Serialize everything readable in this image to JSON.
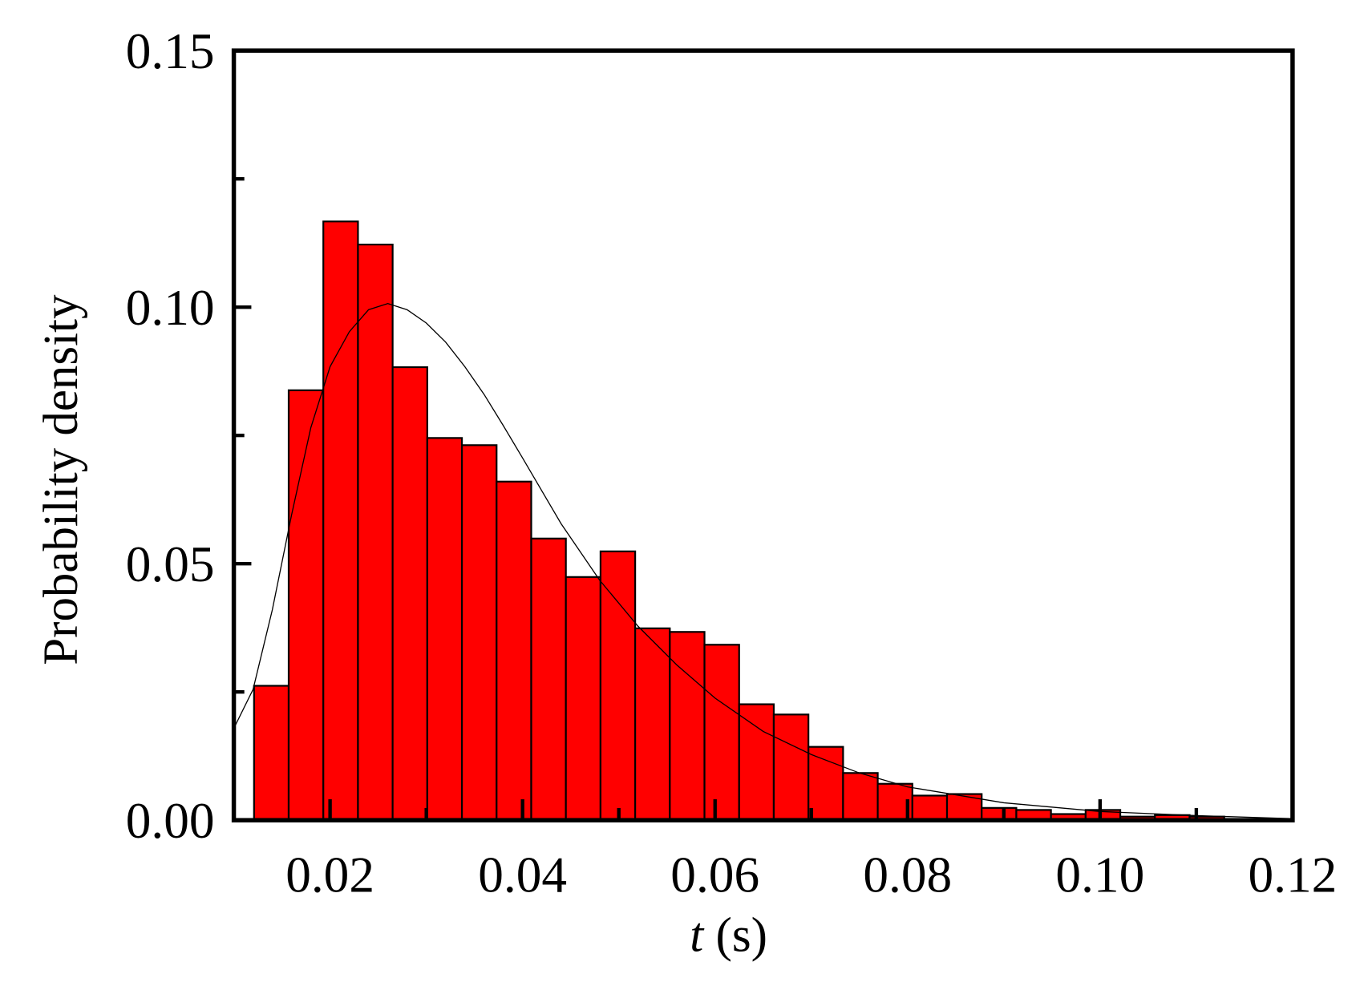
{
  "chart_data": {
    "type": "histogram",
    "xlabel_var": "t",
    "xlabel_unit": "(s)",
    "ylabel": "Probability density",
    "bins": [
      0.0121,
      0.0157,
      0.0193,
      0.0229,
      0.0265,
      0.0301,
      0.0337,
      0.0373,
      0.0409,
      0.0445,
      0.0481,
      0.0517,
      0.0553,
      0.0589,
      0.0625,
      0.0661,
      0.0697,
      0.0733,
      0.0769,
      0.0805,
      0.0841,
      0.0877,
      0.0913,
      0.0949,
      0.0985,
      0.1021,
      0.1057,
      0.1093,
      0.1129
    ],
    "values": [
      0.0262,
      0.0838,
      0.1167,
      0.1122,
      0.0883,
      0.0745,
      0.0731,
      0.066,
      0.0549,
      0.0474,
      0.0524,
      0.0374,
      0.0367,
      0.0342,
      0.0226,
      0.0206,
      0.0143,
      0.0092,
      0.0071,
      0.0048,
      0.0051,
      0.0024,
      0.002,
      0.0012,
      0.002,
      0.0007,
      0.001,
      0.0007
    ],
    "color": "#ff0000",
    "fit": {
      "color": "#000000",
      "x": [
        0.01,
        0.012,
        0.014,
        0.016,
        0.018,
        0.02,
        0.022,
        0.024,
        0.026,
        0.028,
        0.03,
        0.032,
        0.034,
        0.036,
        0.038,
        0.04,
        0.044,
        0.048,
        0.052,
        0.056,
        0.06,
        0.065,
        0.07,
        0.075,
        0.08,
        0.09,
        0.1,
        0.11,
        0.12
      ],
      "y": [
        0.0179,
        0.0255,
        0.041,
        0.0595,
        0.0765,
        0.0884,
        0.0952,
        0.0995,
        0.1007,
        0.0995,
        0.0969,
        0.0932,
        0.0884,
        0.083,
        0.0769,
        0.0706,
        0.0578,
        0.0468,
        0.0378,
        0.0303,
        0.0238,
        0.0173,
        0.0128,
        0.0092,
        0.0065,
        0.0034,
        0.0017,
        0.0009,
        0.0003
      ]
    },
    "xlim": [
      0.01,
      0.12
    ],
    "ylim": [
      0,
      0.15
    ],
    "xticks": [
      0.02,
      0.04,
      0.06,
      0.08,
      {
        "value": 0.1,
        "label": "0.10"
      },
      0.12
    ],
    "xminorticks": [
      0.03,
      0.05,
      0.07,
      0.09,
      0.11
    ],
    "yticks": [
      {
        "value": 0,
        "label": "0.00"
      },
      0.05,
      {
        "value": 0.1,
        "label": "0.10"
      },
      0.15
    ],
    "yminorticks": [
      0.025,
      0.075,
      0.125
    ]
  }
}
